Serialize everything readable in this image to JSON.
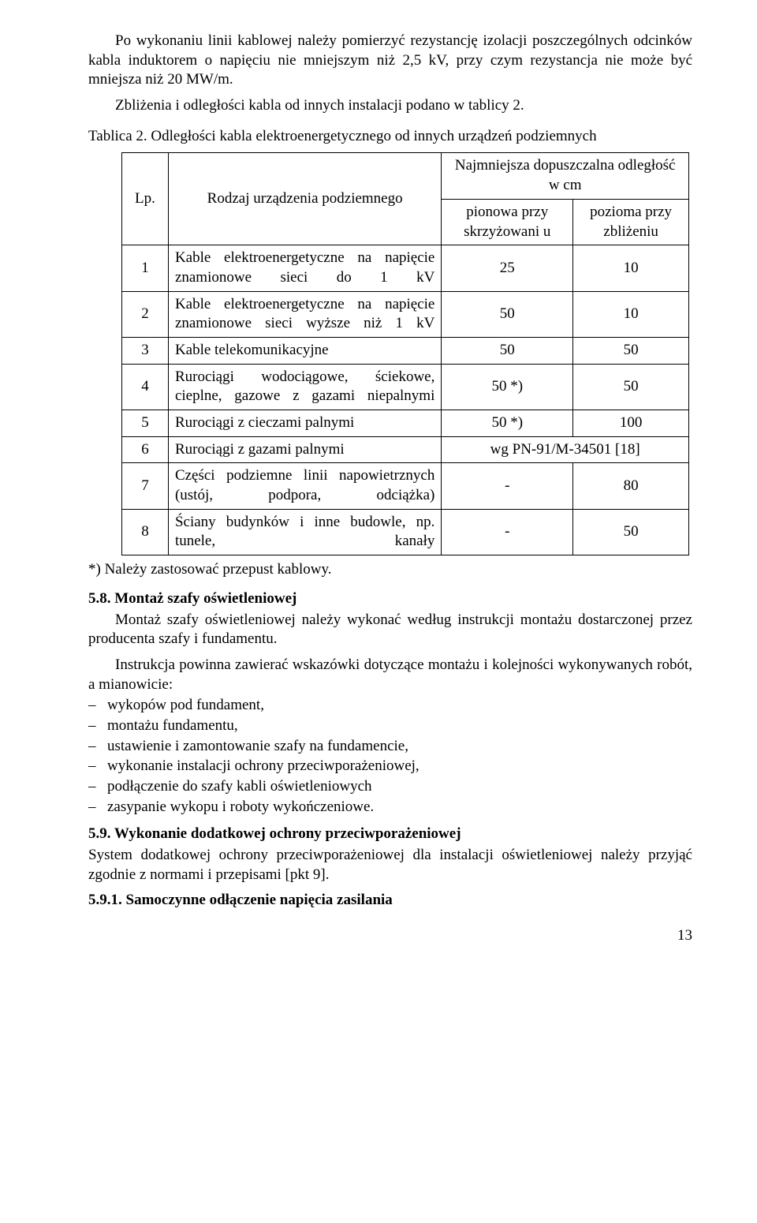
{
  "para1": "Po wykonaniu linii kablowej należy pomierzyć rezystancję izolacji poszczególnych odcinków kabla induktorem o napięciu nie mniejszym niż 2,5 kV, przy czym rezystancja nie może być mniejsza niż 20 MW/m.",
  "para2": "Zbliżenia i odległości kabla od innych instalacji podano w tablicy 2.",
  "tableCaption": "Tablica 2. Odległości kabla elektroenergetycznego od innych urządzeń podziemnych",
  "table": {
    "h_lp": "Lp.",
    "h_type": "Rodzaj urządzenia podziemnego",
    "h_dist": "Najmniejsza dopuszczalna odległość w cm",
    "h_v": "pionowa przy skrzyżowani u",
    "h_h": "pozioma przy zbliżeniu",
    "rows": [
      {
        "n": "1",
        "t": "Kable elektroenergetyczne na napięcie znamionowe sieci do 1 kV",
        "v": "25",
        "h": "10",
        "justify": true
      },
      {
        "n": "2",
        "t": "Kable elektroenergetyczne na napięcie znamionowe sieci wyższe niż 1 kV",
        "v": "50",
        "h": "10",
        "justify": true
      },
      {
        "n": "3",
        "t": "Kable telekomunikacyjne",
        "v": "50",
        "h": "50",
        "justify": false
      },
      {
        "n": "4",
        "t": "Rurociągi wodociągowe, ściekowe, cieplne, gazowe z gazami niepalnymi",
        "v": "50 *)",
        "h": "50",
        "justify": true
      },
      {
        "n": "5",
        "t": "Rurociągi z cieczami palnymi",
        "v": "50 *)",
        "h": "100",
        "justify": false
      },
      {
        "n": "6",
        "t": "Rurociągi z gazami palnymi",
        "v": "",
        "h": "",
        "span": "wg PN-91/M-34501 [18]",
        "justify": false
      },
      {
        "n": "7",
        "t": "Części podziemne linii napowietrznych (ustój, podpora, odciążka)",
        "v": "-",
        "h": "80",
        "justify": true
      },
      {
        "n": "8",
        "t": "Ściany budynków i inne budowle, np. tunele, kanały",
        "v": "-",
        "h": "50",
        "justify": true
      }
    ]
  },
  "tableNote": "*) Należy zastosować przepust kablowy.",
  "s58": {
    "title": "5.8. Montaż szafy oświetleniowej",
    "p1": "Montaż szafy oświetleniowej należy wykonać według instrukcji montażu dostarczonej przez producenta szafy i fundamentu.",
    "p2": "Instrukcja powinna zawierać wskazówki dotyczące montażu i kolejności wykonywanych robót, a mianowicie:",
    "items": [
      "wykopów pod fundament,",
      "montażu fundamentu,",
      "ustawienie i zamontowanie szafy na fundamencie,",
      "wykonanie instalacji ochrony przeciwporażeniowej,",
      "podłączenie do szafy kabli oświetleniowych",
      "zasypanie wykopu i roboty wykończeniowe."
    ]
  },
  "s59": {
    "title": "5.9. Wykonanie dodatkowej ochrony przeciwporażeniowej",
    "p": "System dodatkowej ochrony przeciwporażeniowej dla instalacji oświetleniowej należy przyjąć zgodnie z normami i przepisami [pkt 9]."
  },
  "s591": {
    "title": "5.9.1. Samoczynne odłączenie napięcia zasilania"
  },
  "pageNumber": "13"
}
